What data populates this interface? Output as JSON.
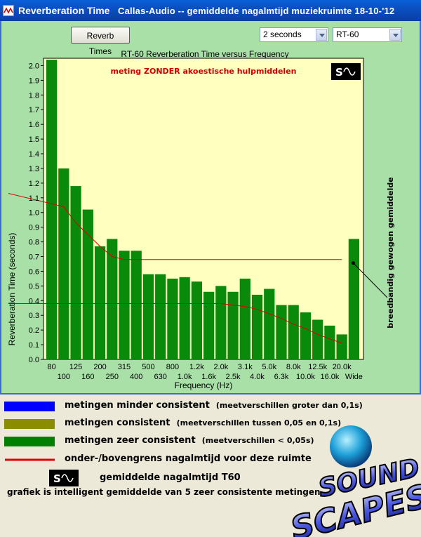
{
  "window": {
    "title": "Reverberation Time",
    "subtitle": "Callas-Audio -- gemiddelde nagalmtijd muziekruimte 18-10-'12"
  },
  "toolbar": {
    "reverb_button": "Reverb Times",
    "time_select": "2 seconds",
    "mode_select": "RT-60"
  },
  "colors": {
    "bar": "#0a8a0a",
    "plot_bg": "#ffffc0",
    "window_bg": "#a8e0a8",
    "limit_line": "#e00000",
    "annotation": "#cc0000"
  },
  "chart_data": {
    "type": "bar",
    "title": "RT-60 Reverberation Time versus Frequency",
    "annotation": "meting ZONDER akoestische hulpmiddelen",
    "side_label": "breedbandig gewogen gemiddelde",
    "xlabel": "Frequency (Hz)",
    "ylabel": "Reverberation Time (seconds)",
    "ylim": [
      0,
      2.05
    ],
    "yticks": [
      "0.0",
      "0.1",
      "0.2",
      "0.3",
      "0.4",
      "0.5",
      "0.6",
      "0.7",
      "0.8",
      "0.9",
      "1.0",
      "1.1",
      "1.2",
      "1.3",
      "1.4",
      "1.5",
      "1.6",
      "1.7",
      "1.8",
      "1.9",
      "2.0"
    ],
    "grid": false,
    "categories": [
      "80",
      "100",
      "125",
      "160",
      "200",
      "250",
      "315",
      "400",
      "500",
      "630",
      "800",
      "1.0k",
      "1.2k",
      "1.6k",
      "2.0k",
      "2.5k",
      "3.1k",
      "4.0k",
      "5.0k",
      "6.3k",
      "8.0k",
      "10.0k",
      "12.5k",
      "16.0k",
      "20.0k",
      "Wide"
    ],
    "values": [
      2.04,
      1.3,
      1.18,
      1.02,
      0.77,
      0.82,
      0.74,
      0.74,
      0.58,
      0.58,
      0.55,
      0.56,
      0.53,
      0.46,
      0.5,
      0.46,
      0.55,
      0.44,
      0.48,
      0.37,
      0.37,
      0.32,
      0.27,
      0.23,
      0.17,
      0.82
    ],
    "upper_limit": [
      1.13,
      1.04,
      0.93,
      0.85,
      0.77,
      0.7,
      0.68,
      0.68,
      0.68,
      0.68,
      0.68,
      0.68,
      0.68,
      0.68,
      0.68,
      0.68,
      0.68,
      0.68,
      0.68,
      0.68,
      0.68,
      0.68,
      0.68,
      0.68,
      0.68
    ],
    "lower_limit": [
      0.38,
      0.38,
      0.38,
      0.38,
      0.38,
      0.38,
      0.38,
      0.38,
      0.38,
      0.38,
      0.38,
      0.38,
      0.38,
      0.38,
      0.38,
      0.37,
      0.36,
      0.34,
      0.31,
      0.28,
      0.24,
      0.21,
      0.17,
      0.14,
      0.11
    ],
    "wide_marker_value": 0.68
  },
  "legend": [
    {
      "color": "#0000ff",
      "label": "metingen minder consistent",
      "note": "(meetverschillen groter dan 0,1s)"
    },
    {
      "color": "#8c8c00",
      "label": "metingen consistent",
      "note": "(meetverschillen tussen 0,05 en 0,1s)"
    },
    {
      "color": "#008000",
      "label": "metingen zeer consistent",
      "note": "(meetverschillen < 0,05s)"
    },
    {
      "color": "#e00000",
      "label": "onder-/bovengrens nagalmtijd voor deze ruimte",
      "note": ""
    }
  ],
  "logo_legend": "gemiddelde nagalmtijd T60",
  "footer_note": "grafiek is intelligent gemiddelde van 5 zeer consistente metingen",
  "brand": {
    "line1": "SOUND",
    "line2": "SCAPES"
  }
}
